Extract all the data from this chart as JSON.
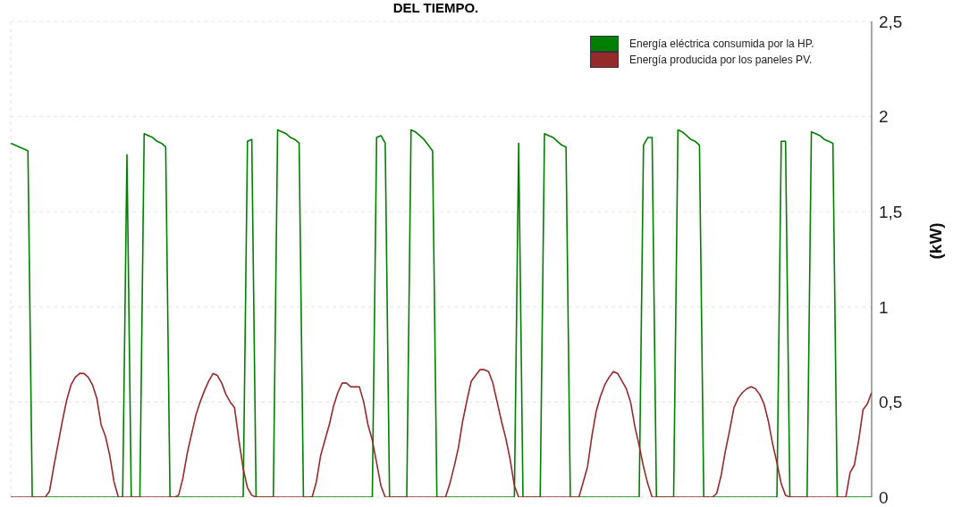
{
  "chart_data": {
    "type": "line",
    "title": "DEL TIEMPO.",
    "ylabel": "(kW)",
    "categories": [
      null,
      null,
      null,
      null,
      null,
      null,
      null,
      null,
      null,
      null,
      null,
      null,
      null,
      null,
      null,
      null,
      null,
      null,
      null,
      null,
      null,
      null,
      null,
      null,
      null,
      null,
      null,
      null,
      null,
      null,
      null,
      null,
      null,
      null,
      null,
      null,
      null,
      null,
      null,
      null,
      null,
      null,
      null,
      null,
      null,
      null,
      null,
      null,
      null,
      null,
      null,
      null,
      null,
      null,
      null,
      null,
      null,
      null,
      null,
      null,
      null,
      null,
      null,
      null,
      null,
      null,
      null,
      null,
      null,
      null,
      null,
      null,
      null,
      null,
      null,
      null,
      null,
      null,
      null,
      null,
      null,
      null,
      null,
      null,
      null,
      null,
      null,
      null,
      null,
      null,
      null,
      null,
      null,
      null,
      null,
      null,
      null,
      null,
      null,
      null,
      null,
      null,
      null,
      null,
      null,
      null,
      null,
      null,
      null,
      null,
      null,
      null,
      null,
      null,
      null,
      null,
      null,
      null,
      null,
      null,
      null,
      null,
      null,
      null,
      null,
      null,
      null,
      null,
      null,
      null,
      null,
      null,
      null,
      null,
      null,
      null,
      null,
      null,
      null,
      null,
      null,
      null,
      null,
      null,
      null,
      null,
      null,
      null,
      null,
      null,
      null,
      null,
      null,
      null,
      null,
      null,
      null,
      null,
      null,
      null,
      null,
      null,
      null,
      null,
      null,
      null,
      null,
      null,
      null,
      null,
      null,
      null,
      null,
      null,
      null,
      null,
      null,
      null,
      null,
      null,
      null,
      null,
      null,
      null,
      null,
      null,
      null,
      null,
      null,
      null,
      null,
      null,
      null,
      null,
      null,
      null,
      null,
      null,
      null,
      null,
      null
    ],
    "series": [
      {
        "name": "Energía eléctrica consumida por la HP.",
        "color": "#008000",
        "values": [
          1.86,
          1.85,
          1.84,
          1.83,
          1.82,
          0,
          0,
          0,
          0,
          0,
          0,
          0,
          0,
          0,
          0,
          0,
          0,
          0,
          0,
          0,
          0,
          0,
          0,
          0,
          0,
          0,
          0,
          1.8,
          0,
          0,
          0,
          1.91,
          1.9,
          1.89,
          1.87,
          1.86,
          1.84,
          0,
          0,
          0,
          0,
          0,
          0,
          0,
          0,
          0,
          0,
          0,
          0,
          0,
          0,
          0,
          0,
          0,
          0,
          1.87,
          1.88,
          0,
          0,
          0,
          0,
          0,
          1.93,
          1.92,
          1.91,
          1.89,
          1.88,
          1.86,
          0,
          0,
          0,
          0,
          0,
          0,
          0,
          0,
          0,
          0,
          0,
          0,
          0,
          0,
          0,
          0,
          0,
          1.89,
          1.9,
          1.86,
          0,
          0,
          0,
          0,
          0,
          1.93,
          1.92,
          1.9,
          1.88,
          1.85,
          1.82,
          0,
          0,
          0,
          0,
          0,
          0,
          0,
          0,
          0,
          0,
          0,
          0,
          0,
          0,
          0,
          0,
          0,
          0,
          0,
          1.86,
          0,
          0,
          0,
          0,
          0,
          1.91,
          1.9,
          1.89,
          1.87,
          1.85,
          1.84,
          0,
          0,
          0,
          0,
          0,
          0,
          0,
          0,
          0,
          0,
          0,
          0,
          0,
          0,
          0,
          0,
          0,
          1.85,
          1.89,
          1.89,
          0,
          0,
          0,
          0,
          0,
          1.93,
          1.92,
          1.9,
          1.88,
          1.87,
          1.85,
          0,
          0,
          0,
          0,
          0,
          0,
          0,
          0,
          0,
          0,
          0,
          0,
          0,
          0,
          0,
          0,
          0,
          0,
          1.87,
          1.87,
          0,
          0,
          0,
          0,
          0,
          1.92,
          1.91,
          1.9,
          1.88,
          1.87,
          1.86,
          0,
          0,
          0,
          0,
          0,
          0,
          0,
          0,
          0
        ]
      },
      {
        "name": "Energía producida por los paneles PV.",
        "color": "#952a2a",
        "values": [
          0,
          0,
          0,
          0,
          0,
          0,
          0,
          0,
          0,
          0.03,
          0.16,
          0.28,
          0.4,
          0.51,
          0.59,
          0.63,
          0.65,
          0.65,
          0.63,
          0.59,
          0.52,
          0.38,
          0.32,
          0.22,
          0.08,
          0,
          0,
          0,
          0,
          0,
          0,
          0,
          0,
          0,
          0,
          0,
          0,
          0,
          0,
          0.01,
          0.1,
          0.23,
          0.33,
          0.43,
          0.5,
          0.56,
          0.61,
          0.65,
          0.64,
          0.6,
          0.54,
          0.5,
          0.47,
          0.3,
          0.15,
          0.05,
          0.01,
          0,
          0,
          0,
          0,
          0,
          0,
          0,
          0,
          0,
          0,
          0,
          0,
          0,
          0,
          0.08,
          0.22,
          0.3,
          0.38,
          0.48,
          0.55,
          0.6,
          0.6,
          0.58,
          0.58,
          0.58,
          0.5,
          0.38,
          0.3,
          0.18,
          0.06,
          0,
          0,
          0,
          0,
          0,
          0,
          0,
          0,
          0,
          0,
          0,
          0,
          0,
          0,
          0,
          0.07,
          0.16,
          0.26,
          0.4,
          0.51,
          0.61,
          0.64,
          0.67,
          0.67,
          0.66,
          0.6,
          0.5,
          0.4,
          0.31,
          0.2,
          0.06,
          0,
          0,
          0,
          0,
          0,
          0,
          0,
          0,
          0,
          0,
          0,
          0,
          0,
          0,
          0,
          0.08,
          0.16,
          0.32,
          0.45,
          0.53,
          0.59,
          0.63,
          0.66,
          0.65,
          0.61,
          0.57,
          0.5,
          0.37,
          0.27,
          0.16,
          0.07,
          0,
          0,
          0,
          0,
          0,
          0,
          0,
          0,
          0,
          0,
          0,
          0,
          0,
          0,
          0,
          0.02,
          0.11,
          0.24,
          0.35,
          0.47,
          0.52,
          0.55,
          0.57,
          0.58,
          0.57,
          0.54,
          0.49,
          0.4,
          0.28,
          0.18,
          0.07,
          0.01,
          0,
          0,
          0,
          0,
          0,
          0,
          0,
          0,
          0,
          0,
          0,
          0,
          0,
          0,
          0.13,
          0.17,
          0.3,
          0.46,
          0.49,
          0.55
        ]
      }
    ],
    "ylim": [
      0,
      2.5
    ],
    "yticks": [
      0,
      {
        "value": 0.5,
        "label": "0,5"
      },
      1,
      {
        "value": 1.5,
        "label": "1,5"
      },
      2,
      {
        "value": 2.5,
        "label": "2,5"
      }
    ],
    "grid": true,
    "legend": "top right",
    "tick_labels": "y",
    "marker": "none",
    "line_style": "solid"
  }
}
